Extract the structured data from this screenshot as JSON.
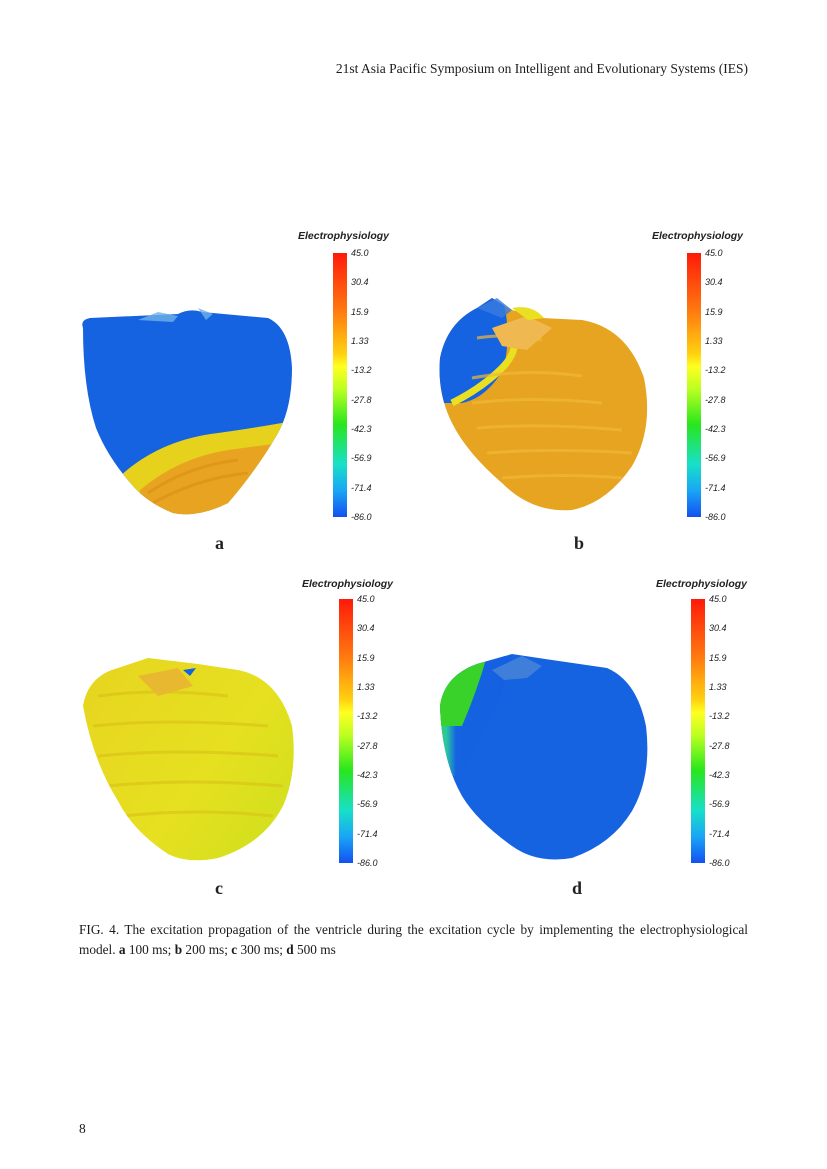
{
  "header": {
    "running_title": "21st Asia Pacific Symposium on Intelligent and Evolutionary Systems (IES)"
  },
  "figure": {
    "panels": [
      {
        "id": "a",
        "label": "a",
        "colorbar_title": "Electrophysiology"
      },
      {
        "id": "b",
        "label": "b",
        "colorbar_title": "Electrophysiology"
      },
      {
        "id": "c",
        "label": "c",
        "colorbar_title": "Electrophysiology"
      },
      {
        "id": "d",
        "label": "d",
        "colorbar_title": "Electrophysiology"
      }
    ],
    "colorbar_ticks": [
      "45.0",
      "30.4",
      "15.9",
      "1.33",
      "-13.2",
      "-27.8",
      "-42.3",
      "-56.9",
      "-71.4",
      "-86.0"
    ],
    "colors": {
      "blue": "#1563e0",
      "orange": "#e8a420",
      "yellow": "#e6e020",
      "green": "#38d22a",
      "cyan": "#20c0e0"
    }
  },
  "caption": {
    "lead": "FIG. 4. The excitation propagation of the ventricle during the excitation cycle by implementing the electrophysiological model.",
    "items": [
      {
        "label": "a",
        "text": " 100 ms; "
      },
      {
        "label": "b",
        "text": " 200 ms; "
      },
      {
        "label": "c",
        "text": " 300 ms; "
      },
      {
        "label": "d",
        "text": " 500 ms"
      }
    ]
  },
  "footer": {
    "page_number": "8"
  }
}
